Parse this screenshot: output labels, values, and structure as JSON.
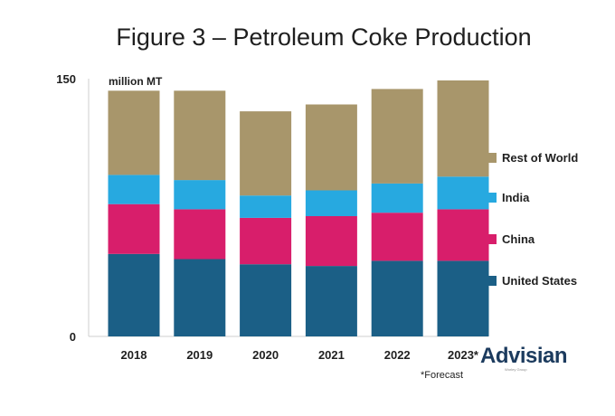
{
  "chart_data": {
    "type": "bar",
    "stacked": true,
    "title": "Figure 3 – Petroleum Coke Production",
    "unit_label": "million MT",
    "categories": [
      "2018",
      "2019",
      "2020",
      "2021",
      "2022",
      "2023*"
    ],
    "ylim": [
      0,
      150
    ],
    "yticks": [
      0,
      150
    ],
    "grid": false,
    "legend_position": "right",
    "series": [
      {
        "name": "United States",
        "color": "#1b5f86",
        "values": [
          48,
          45,
          42,
          41,
          44,
          44
        ]
      },
      {
        "name": "China",
        "color": "#d81e6b",
        "values": [
          29,
          29,
          27,
          29,
          28,
          30
        ]
      },
      {
        "name": "India",
        "color": "#27a9e0",
        "values": [
          17,
          17,
          13,
          15,
          17,
          19
        ]
      },
      {
        "name": "Rest of World",
        "color": "#a8966b",
        "values": [
          49,
          52,
          49,
          50,
          55,
          56
        ]
      }
    ],
    "footnote": "*Forecast"
  },
  "logo": {
    "text": "Advisian",
    "tagline": "Worley Group"
  }
}
